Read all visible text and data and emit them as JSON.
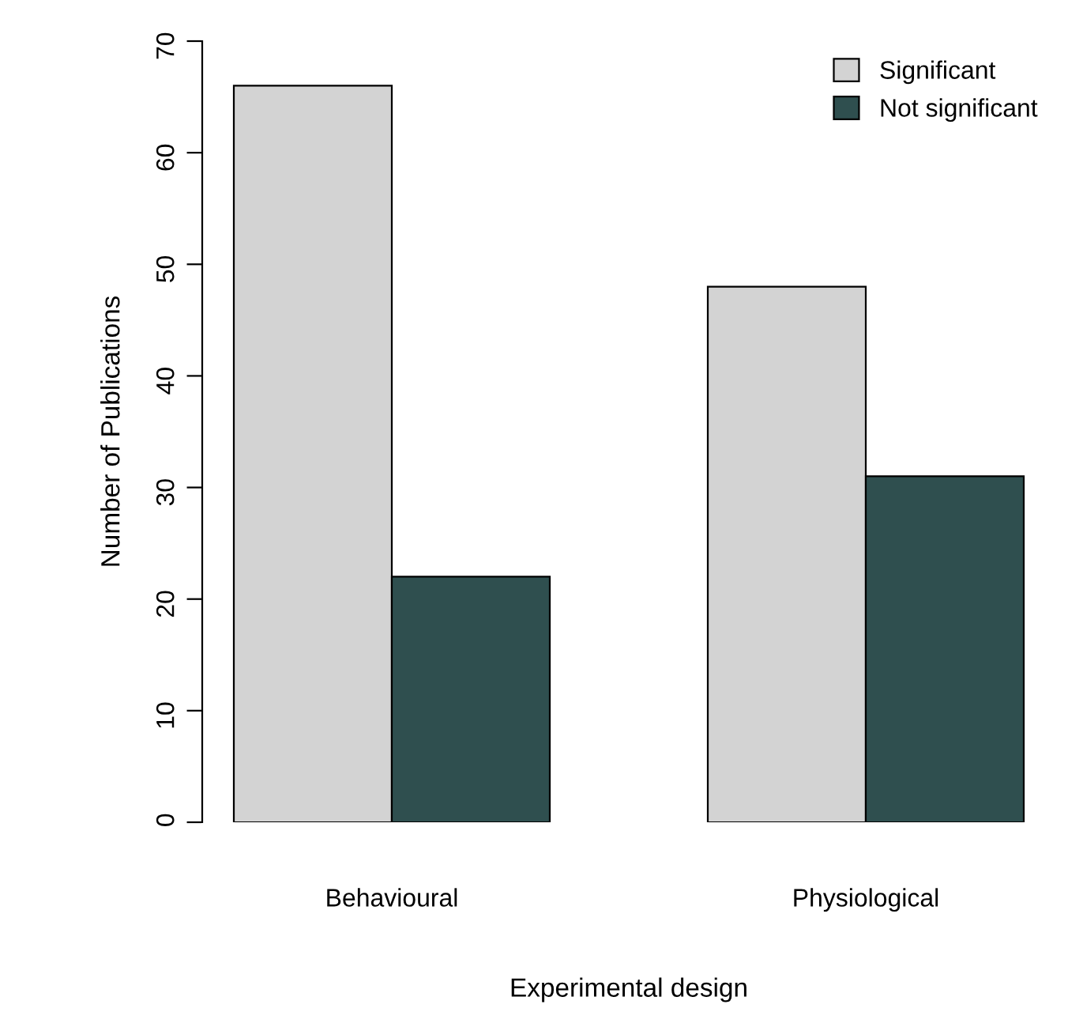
{
  "chart_data": {
    "type": "bar",
    "xlabel": "Experimental design",
    "ylabel": "Number of Publications",
    "categories": [
      "Behavioural",
      "Physiological"
    ],
    "series": [
      {
        "name": "Significant",
        "color": "#d3d3d3",
        "values": [
          66,
          48
        ]
      },
      {
        "name": "Not significant",
        "color": "#2f4f4f",
        "values": [
          22,
          31
        ]
      }
    ],
    "ylim": [
      0,
      70
    ],
    "yticks": [
      0,
      10,
      20,
      30,
      40,
      50,
      60,
      70
    ],
    "grid": false,
    "legend": "top right"
  }
}
